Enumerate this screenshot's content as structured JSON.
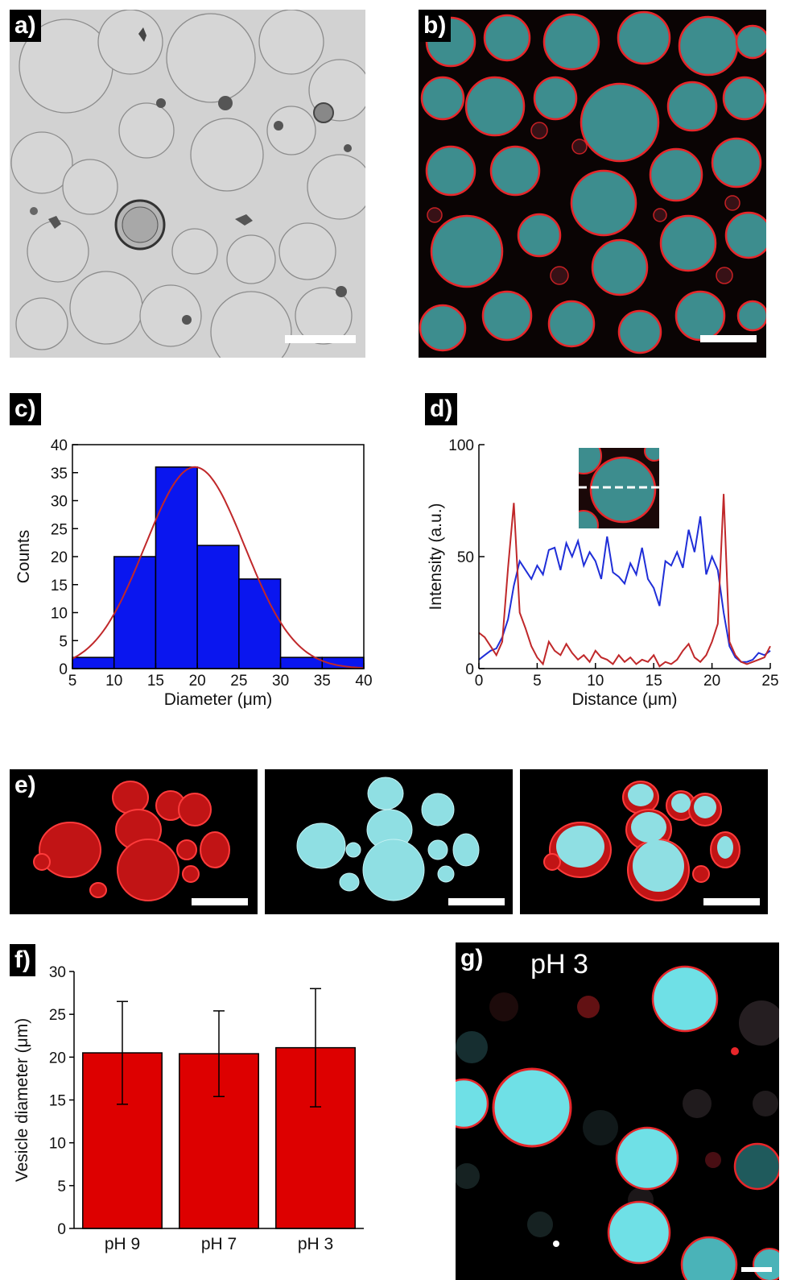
{
  "panels": {
    "a": {
      "label": "a)"
    },
    "b": {
      "label": "b)"
    },
    "c": {
      "label": "c)"
    },
    "d": {
      "label": "d)"
    },
    "e": {
      "label": "e)"
    },
    "f": {
      "label": "f)"
    },
    "g": {
      "label": "g)",
      "overlay_text": "pH 3"
    }
  },
  "colors": {
    "membrane_red": "#e8262a",
    "lumen_cyan": "#6fe0e6",
    "bar_blue": "#0a16ef",
    "bar_red": "#dd0000",
    "fit_red": "#c0282a",
    "trace_blue": "#1f2ed8",
    "trace_red": "#c0282a",
    "brightfield_gray": "#cfcfcf"
  },
  "chart_data": [
    {
      "id": "c",
      "type": "bar",
      "xlabel": "Diameter (μm)",
      "ylabel": "Counts",
      "xlim": [
        5,
        40
      ],
      "ylim": [
        0,
        40
      ],
      "xticks": [
        5,
        10,
        15,
        20,
        25,
        30,
        35,
        40
      ],
      "yticks": [
        0,
        5,
        10,
        15,
        20,
        25,
        30,
        35,
        40
      ],
      "bins": [
        [
          5,
          10
        ],
        [
          10,
          15
        ],
        [
          15,
          20
        ],
        [
          20,
          25
        ],
        [
          25,
          30
        ],
        [
          30,
          35
        ],
        [
          35,
          40
        ]
      ],
      "values": [
        2,
        20,
        36,
        22,
        16,
        2,
        2
      ],
      "fit": {
        "type": "gaussian",
        "peak": 36,
        "center": 19.7,
        "sigma": 6.0
      }
    },
    {
      "id": "d",
      "type": "line",
      "xlabel": "Distance (μm)",
      "ylabel": "Intensity (a.u.)",
      "xlim": [
        0,
        25
      ],
      "ylim": [
        0,
        100
      ],
      "xticks": [
        0,
        5,
        10,
        15,
        20,
        25
      ],
      "yticks": [
        0,
        50,
        100
      ],
      "x": [
        0,
        0.5,
        1,
        1.5,
        2,
        2.5,
        3,
        3.5,
        4,
        4.5,
        5,
        5.5,
        6,
        6.5,
        7,
        7.5,
        8,
        8.5,
        9,
        9.5,
        10,
        10.5,
        11,
        11.5,
        12,
        12.5,
        13,
        13.5,
        14,
        14.5,
        15,
        15.5,
        16,
        16.5,
        17,
        17.5,
        18,
        18.5,
        19,
        19.5,
        20,
        20.5,
        21,
        21.5,
        22,
        22.5,
        23,
        23.5,
        24,
        24.5,
        25
      ],
      "series": [
        {
          "color": "#1f2ed8",
          "values": [
            4,
            6,
            8,
            9,
            14,
            22,
            37,
            48,
            44,
            40,
            46,
            42,
            53,
            54,
            44,
            56,
            50,
            57,
            46,
            52,
            48,
            40,
            59,
            43,
            41,
            38,
            47,
            42,
            54,
            40,
            36,
            28,
            48,
            46,
            52,
            45,
            62,
            52,
            68,
            42,
            50,
            44,
            25,
            10,
            5,
            3,
            3,
            4,
            7,
            6,
            8
          ]
        },
        {
          "color": "#c0282a",
          "values": [
            16,
            14,
            10,
            6,
            12,
            45,
            74,
            25,
            18,
            10,
            5,
            2,
            12,
            8,
            6,
            11,
            7,
            4,
            6,
            3,
            8,
            5,
            4,
            2,
            6,
            3,
            5,
            2,
            4,
            3,
            6,
            1,
            3,
            2,
            4,
            8,
            11,
            5,
            3,
            6,
            12,
            20,
            78,
            12,
            6,
            3,
            2,
            3,
            4,
            5,
            10
          ]
        }
      ]
    },
    {
      "id": "f",
      "type": "bar",
      "ylabel": "Vesicle diameter (μm)",
      "categories": [
        "pH 9",
        "pH 7",
        "pH 3"
      ],
      "values": [
        20.5,
        20.4,
        21.1
      ],
      "errors": [
        6.0,
        5.0,
        6.9
      ],
      "ylim": [
        0,
        30
      ],
      "yticks": [
        0,
        5,
        10,
        15,
        20,
        25,
        30
      ]
    }
  ]
}
